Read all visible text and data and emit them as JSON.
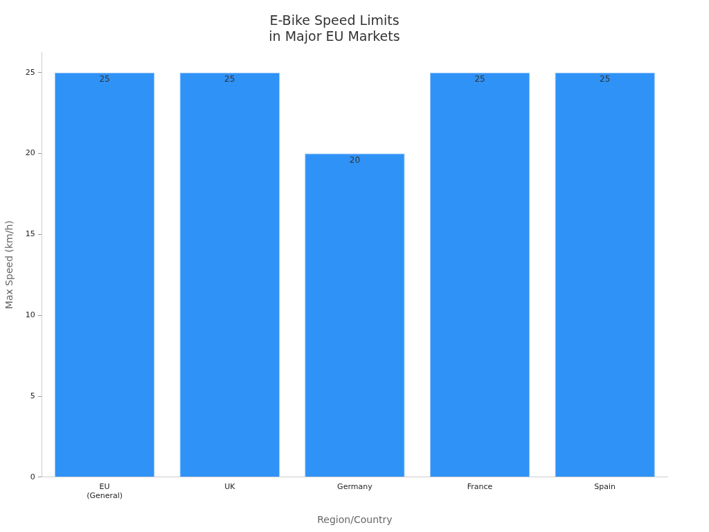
{
  "chart_data": {
    "type": "bar",
    "title": "E-Bike Speed Limits\nin Major EU Markets",
    "xlabel": "Region/Country",
    "ylabel": "Max Speed (km/h)",
    "categories": [
      "EU\n(General)",
      "UK",
      "Germany",
      "France",
      "Spain"
    ],
    "values": [
      25,
      25,
      20,
      25,
      25
    ],
    "color": "#2f92f7",
    "ylim": [
      0,
      26.25
    ],
    "yticks": [
      0,
      5,
      10,
      15,
      20,
      25
    ],
    "grid": false,
    "legend": false,
    "data_labels": true
  }
}
